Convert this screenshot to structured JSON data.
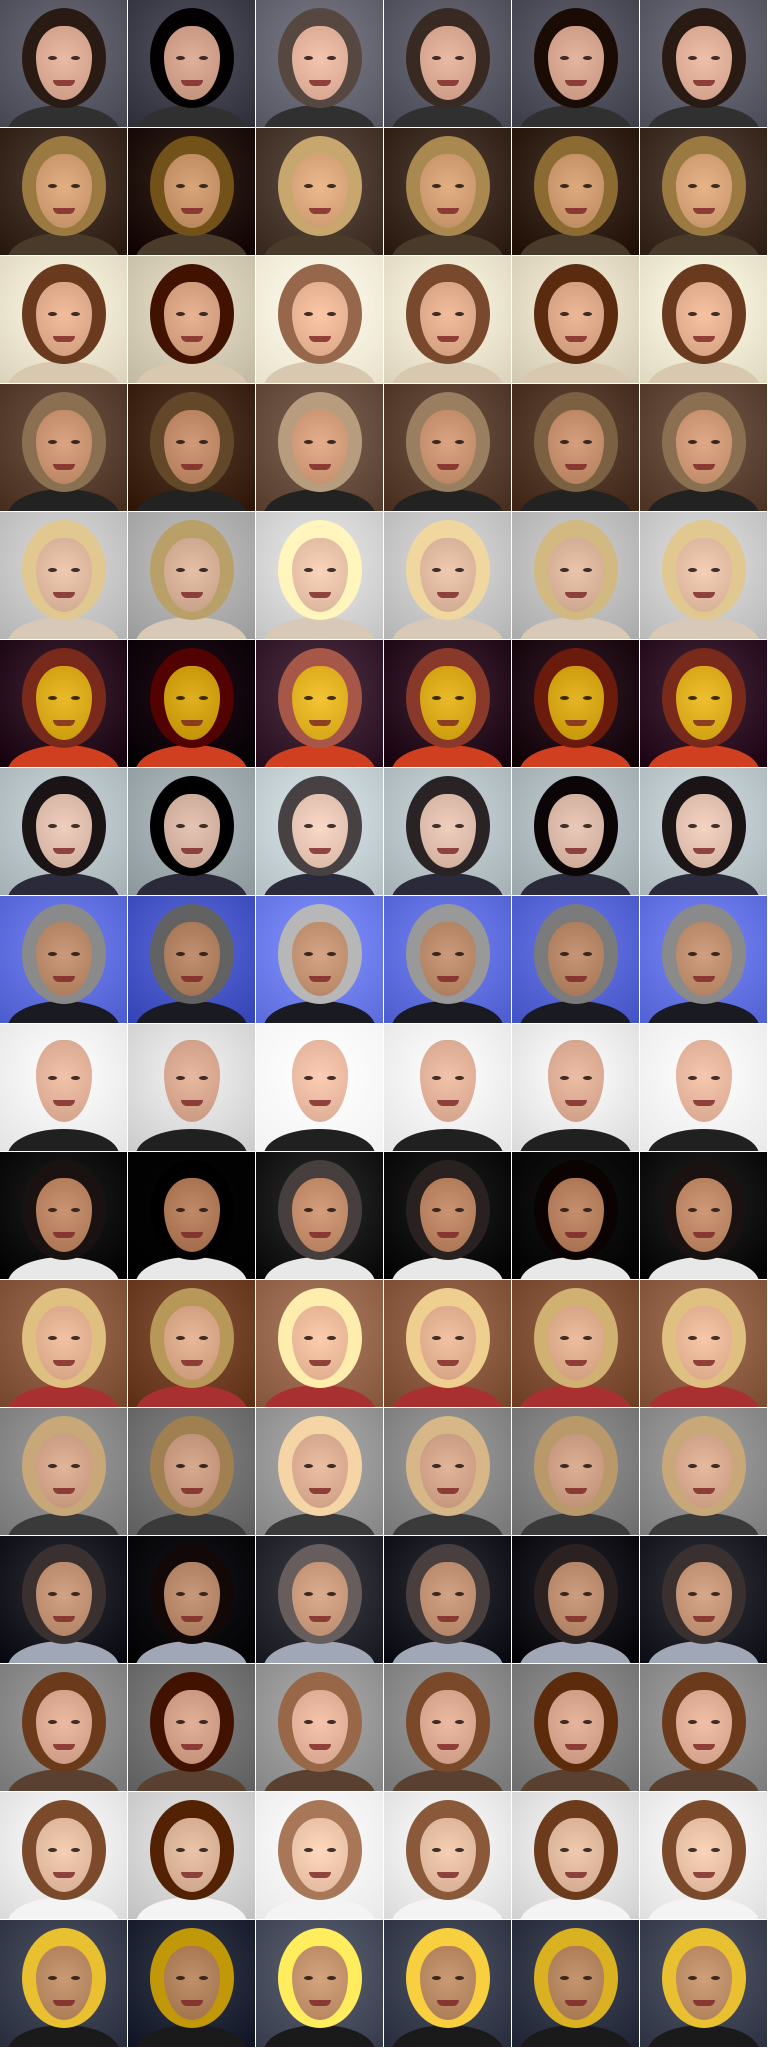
{
  "grid": {
    "columns": 6,
    "column_variants": [
      {
        "bg_shift": 0,
        "hair_shift": 0,
        "skin_shift": 0
      },
      {
        "bg_shift": -25,
        "hair_shift": -40,
        "skin_shift": -10
      },
      {
        "bg_shift": 15,
        "hair_shift": 45,
        "skin_shift": 10
      },
      {
        "bg_shift": 0,
        "hair_shift": 15,
        "skin_shift": 0
      },
      {
        "bg_shift": -10,
        "hair_shift": -15,
        "skin_shift": -5
      },
      {
        "bg_shift": 5,
        "hair_shift": 0,
        "skin_shift": 5
      }
    ]
  },
  "rows": [
    {
      "subject": "woman-dark-hair",
      "bg": "#5a5a66",
      "hair": "#2a1a14",
      "skin": "#e0b09a",
      "clothes": "#303030",
      "bald": false
    },
    {
      "subject": "man-turned-head",
      "bg": "#3a2a20",
      "hair": "#9a7a40",
      "skin": "#d8a57a",
      "clothes": "#4a3a2a",
      "bald": false
    },
    {
      "subject": "woman-bangs-smiling",
      "bg": "#efe6d0",
      "hair": "#6a3a1e",
      "skin": "#e7b393",
      "clothes": "#d8c8b0",
      "bald": false
    },
    {
      "subject": "older-man-curly-hair",
      "bg": "#5a4030",
      "hair": "#8a7050",
      "skin": "#d09a78",
      "clothes": "#222222",
      "bald": false
    },
    {
      "subject": "blonde-woman-sunglasses",
      "bg": "#c8c8c8",
      "hair": "#e0c890",
      "skin": "#e6c0a6",
      "clothes": "#d8c8b8",
      "bald": false
    },
    {
      "subject": "man-yellow-light",
      "bg": "#2a1020",
      "hair": "#7a2a1a",
      "skin": "#e0b020",
      "clothes": "#d04020",
      "bald": false
    },
    {
      "subject": "woman-dark-hair-pale",
      "bg": "#b8c4c8",
      "hair": "#1a1416",
      "skin": "#e6c4b4",
      "clothes": "#2a2a3a",
      "bald": false
    },
    {
      "subject": "older-man-blue-backdrop",
      "bg": "#6070e0",
      "hair": "#8a8a8a",
      "skin": "#c09070",
      "clothes": "#1a1a22",
      "bald": false
    },
    {
      "subject": "bald-man",
      "bg": "#f8f8f8",
      "hair": "#d8a890",
      "skin": "#e8b8a0",
      "clothes": "#202020",
      "bald": true
    },
    {
      "subject": "man-dark-background",
      "bg": "#0a0a0a",
      "hair": "#1a1210",
      "skin": "#c08a68",
      "clothes": "#e8e8e8",
      "bald": false
    },
    {
      "subject": "blonde-woman-indoor",
      "bg": "#8a5a40",
      "hair": "#e0c080",
      "skin": "#e8b898",
      "clothes": "#a83030",
      "bald": false
    },
    {
      "subject": "woman-short-blonde",
      "bg": "#8a8a8a",
      "hair": "#c8a878",
      "skin": "#d8aa90",
      "clothes": "#3a3a3a",
      "bald": false
    },
    {
      "subject": "man-short-hair",
      "bg": "#1a1a22",
      "hair": "#3a3030",
      "skin": "#c8987a",
      "clothes": "#a0a8b8",
      "bald": false
    },
    {
      "subject": "woman-brown-hair",
      "bg": "#8a8a8a",
      "hair": "#6a3a1a",
      "skin": "#e2b098",
      "clothes": "#5a4030",
      "bald": false
    },
    {
      "subject": "woman-bangs-white-bg",
      "bg": "#eeeeee",
      "hair": "#7a4a2a",
      "skin": "#ecc4aa",
      "clothes": "#f4f4f4",
      "bald": false
    },
    {
      "subject": "man-yellow-cap",
      "bg": "#3a4050",
      "hair": "#e8c030",
      "skin": "#c0906a",
      "clothes": "#1a1a1a",
      "bald": false
    }
  ]
}
